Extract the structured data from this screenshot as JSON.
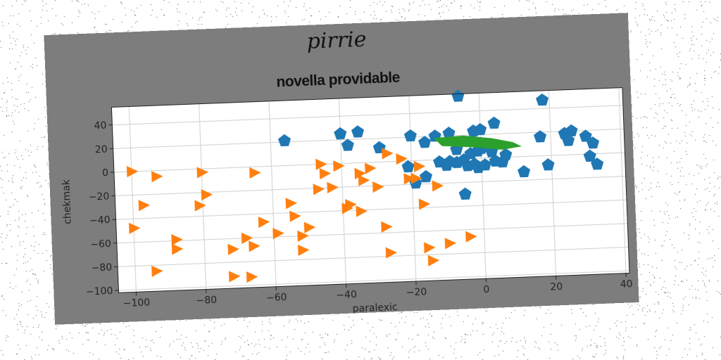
{
  "chart_data": {
    "type": "scatter",
    "suptitle": "pirrie",
    "title": "novella providable",
    "xlabel": "paralexic",
    "ylabel": "chekmak",
    "xlim": [
      -105,
      41
    ],
    "ylim": [
      -102,
      55
    ],
    "xticks": [
      -100,
      -80,
      -60,
      -40,
      -20,
      0,
      20,
      40
    ],
    "yticks": [
      40,
      20,
      0,
      -20,
      -40,
      -60,
      -80,
      -100
    ],
    "grid": true,
    "colors": {
      "blue": "#1f77b4",
      "orange": "#ff7f0e",
      "green": "#2ca02c",
      "figure_bg": "#7d7d7d"
    },
    "series": [
      {
        "marker": "pentagon",
        "color": "#1f77b4",
        "points": [
          [
            -56,
            21
          ],
          [
            -40,
            25
          ],
          [
            -38,
            15
          ],
          [
            -35,
            26
          ],
          [
            -29,
            12
          ],
          [
            -20,
            21
          ],
          [
            -16,
            15
          ],
          [
            -19,
            -19
          ],
          [
            -16,
            -14
          ],
          [
            -21,
            -5
          ],
          [
            -13,
            20
          ],
          [
            -9,
            22
          ],
          [
            -6,
            53
          ],
          [
            -7,
            8
          ],
          [
            -9,
            -2
          ],
          [
            -10,
            -5
          ],
          [
            -7,
            -3
          ],
          [
            -5,
            -1
          ],
          [
            -4,
            -6
          ],
          [
            -3,
            4
          ],
          [
            -2,
            -5
          ],
          [
            -1,
            -8
          ],
          [
            0,
            8
          ],
          [
            -2,
            23
          ],
          [
            0,
            24
          ],
          [
            1,
            -6
          ],
          [
            3,
            5
          ],
          [
            4,
            -3
          ],
          [
            4,
            29
          ],
          [
            6,
            -4
          ],
          [
            7,
            2
          ],
          [
            17,
            16
          ],
          [
            18,
            47
          ],
          [
            -5,
            -30
          ],
          [
            -12,
            -2
          ],
          [
            19,
            -8
          ],
          [
            12,
            -13
          ],
          [
            24,
            18
          ],
          [
            25,
            12
          ],
          [
            26,
            20
          ],
          [
            30,
            15
          ],
          [
            32,
            9
          ],
          [
            31,
            -2
          ],
          [
            33,
            -9
          ],
          [
            -1,
            6
          ]
        ]
      },
      {
        "marker": "triangle-right",
        "color": "#ff7f0e",
        "points": [
          [
            -100,
            0
          ],
          [
            -93,
            -5
          ],
          [
            -97,
            -29
          ],
          [
            -100,
            -48
          ],
          [
            -94,
            -85
          ],
          [
            -88,
            -59
          ],
          [
            -88,
            -67
          ],
          [
            -80,
            -3
          ],
          [
            -79,
            -22
          ],
          [
            -81,
            -31
          ],
          [
            -72,
            -69
          ],
          [
            -72,
            -92
          ],
          [
            -68,
            -60
          ],
          [
            -66,
            -67
          ],
          [
            -67,
            -93
          ],
          [
            -65,
            -5
          ],
          [
            -63,
            -47
          ],
          [
            -59,
            -57
          ],
          [
            -55,
            -32
          ],
          [
            -54,
            -43
          ],
          [
            -52,
            -60
          ],
          [
            -52,
            -72
          ],
          [
            -50,
            -53
          ],
          [
            -47,
            -21
          ],
          [
            -46,
            0
          ],
          [
            -45,
            -8
          ],
          [
            -43,
            -20
          ],
          [
            -41,
            -2
          ],
          [
            -39,
            -38
          ],
          [
            -38,
            -35
          ],
          [
            -35,
            -41
          ],
          [
            -35,
            -9
          ],
          [
            -34,
            -15
          ],
          [
            -32,
            -5
          ],
          [
            -30,
            -21
          ],
          [
            -27,
            7
          ],
          [
            -28,
            -55
          ],
          [
            -27,
            -77
          ],
          [
            -23,
            2
          ],
          [
            -18,
            -5
          ],
          [
            -19,
            -15
          ],
          [
            -17,
            -37
          ],
          [
            -16,
            -74
          ],
          [
            -15,
            -85
          ],
          [
            -13,
            -22
          ],
          [
            -10,
            -71
          ],
          [
            -4,
            -66
          ],
          [
            -21,
            -15
          ]
        ]
      },
      {
        "marker": "filled-polygon",
        "color": "#2ca02c",
        "points": [
          [
            -13,
            18
          ],
          [
            -5,
            19
          ],
          [
            3,
            16
          ],
          [
            9,
            12
          ],
          [
            11,
            9
          ],
          [
            6,
            7
          ],
          [
            -2,
            10
          ],
          [
            -11,
            12
          ]
        ]
      }
    ]
  }
}
